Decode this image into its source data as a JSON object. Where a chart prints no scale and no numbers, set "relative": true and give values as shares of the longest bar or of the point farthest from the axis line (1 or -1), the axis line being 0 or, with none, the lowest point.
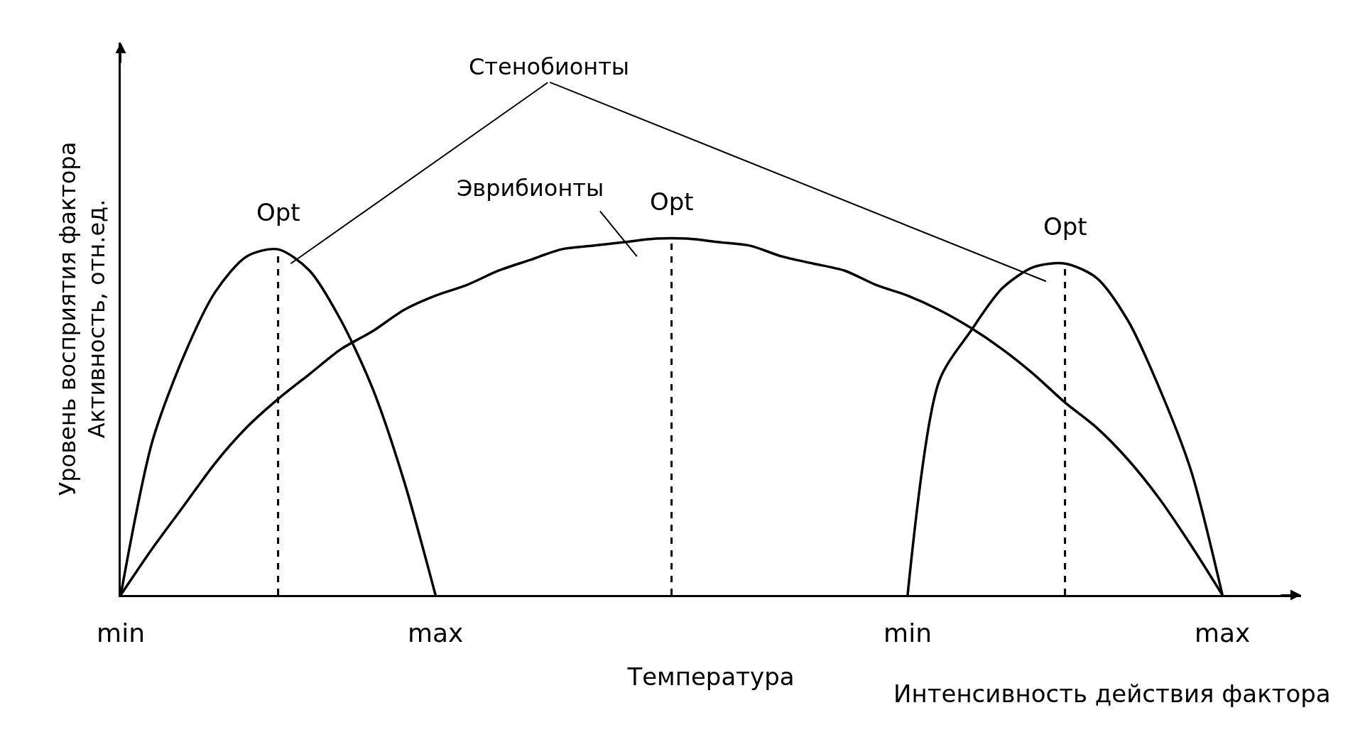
{
  "chart_data": {
    "type": "line",
    "relative": true,
    "xlabel": "Температура",
    "ylabel": "Уровень восприятия фактора\nАктивность, отн.ед.",
    "categories": [
      "min",
      null,
      null,
      null,
      null,
      null,
      null,
      null,
      null,
      null,
      "max",
      null,
      null,
      null,
      null,
      null,
      null,
      null,
      null,
      null,
      null,
      null,
      null,
      null,
      null,
      "min",
      null,
      null,
      null,
      null,
      null,
      null,
      null,
      null,
      null,
      "max"
    ],
    "marker": "none",
    "line_style": "solid",
    "series": [
      {
        "color": "#000000",
        "values": [
          0,
          0.43,
          0.67,
          0.85,
          0.95,
          0.97,
          0.91,
          0.77,
          0.58,
          0.32,
          0,
          null,
          null,
          null,
          null,
          null,
          null,
          null,
          null,
          null,
          null,
          null,
          null,
          null,
          null,
          null,
          null,
          null,
          null,
          null,
          null,
          null,
          null,
          null,
          null,
          null
        ]
      },
      {
        "color": "#000000",
        "values": [
          0,
          0.13,
          0.25,
          0.37,
          0.47,
          0.55,
          0.62,
          0.69,
          0.74,
          0.8,
          0.84,
          0.87,
          0.91,
          0.94,
          0.97,
          0.98,
          0.99,
          1,
          1,
          0.99,
          0.98,
          0.95,
          0.93,
          0.91,
          0.87,
          0.84,
          0.8,
          0.75,
          0.69,
          0.62,
          0.54,
          0.47,
          0.38,
          0.27,
          0.14,
          0
        ]
      },
      {
        "color": "#000000",
        "values": [
          null,
          null,
          null,
          null,
          null,
          null,
          null,
          null,
          null,
          null,
          null,
          null,
          null,
          null,
          null,
          null,
          null,
          null,
          null,
          null,
          null,
          null,
          null,
          null,
          null,
          0,
          0.6,
          0.74,
          0.86,
          0.92,
          0.93,
          0.89,
          0.77,
          0.58,
          0.35,
          0
        ]
      }
    ],
    "annotations": [
      "Стенобионты",
      "Эврибионты",
      "Opt",
      "Opt",
      "Opt",
      "Интенсивность действия фактора"
    ]
  }
}
